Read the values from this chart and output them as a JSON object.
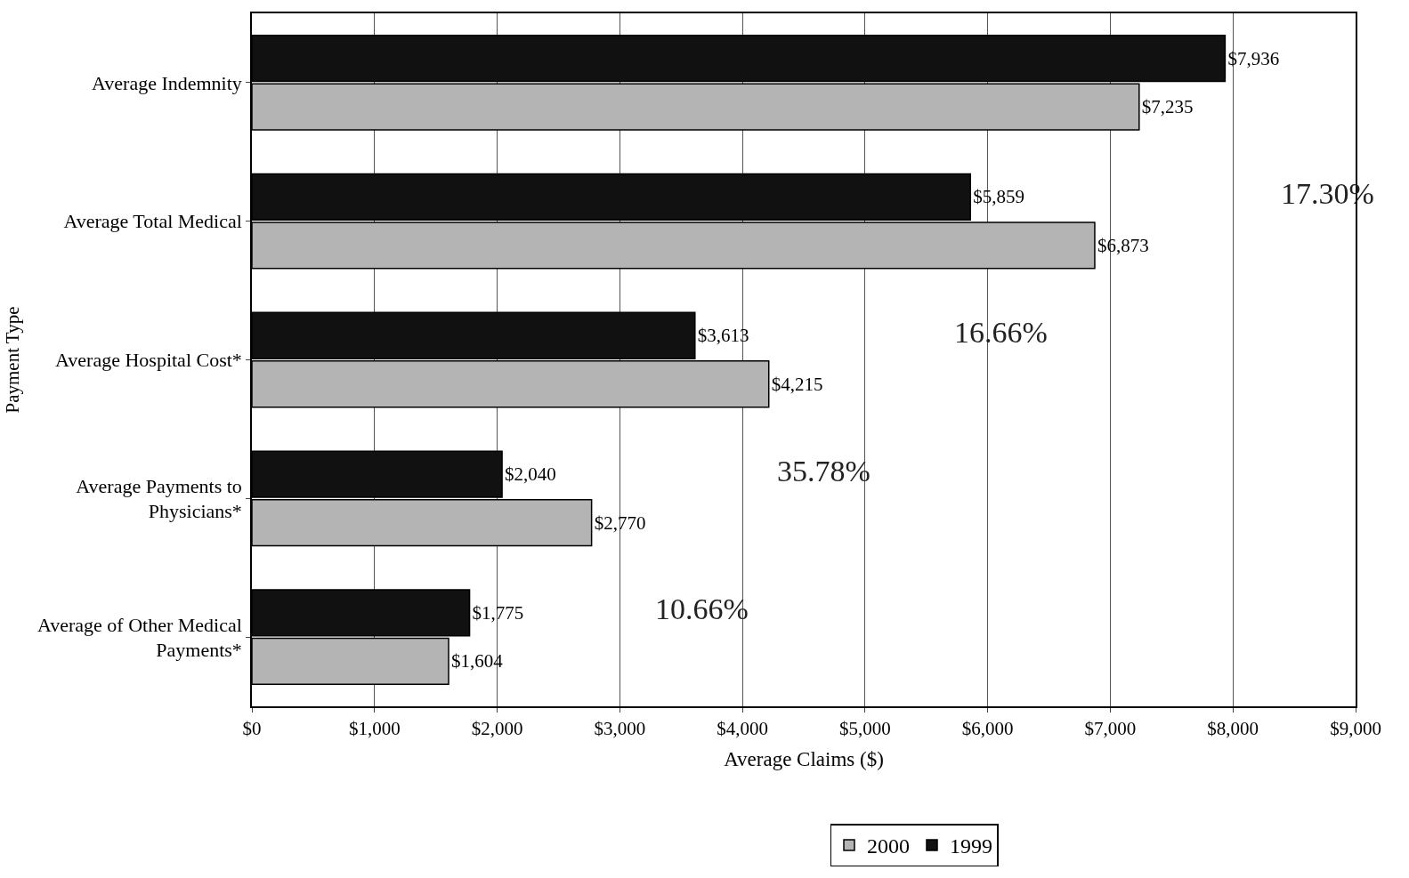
{
  "chart_data": {
    "type": "bar",
    "orientation": "horizontal",
    "xlabel": "Average Claims ($)",
    "ylabel": "Payment Type",
    "categories": [
      "Average Indemnity",
      "Average Total Medical",
      "Average Hospital Cost*",
      "Average Payments to Physicians*",
      "Average of Other Medical Payments*"
    ],
    "series": [
      {
        "name": "1999",
        "color": "#111111",
        "values": [
          7936,
          5859,
          3613,
          2040,
          1775
        ],
        "value_labels": [
          "$7,936",
          "$5,859",
          "$3,613",
          "$2,040",
          "$1,775"
        ]
      },
      {
        "name": "2000",
        "color": "#b4b4b4",
        "values": [
          7235,
          6873,
          4215,
          2770,
          1604
        ],
        "value_labels": [
          "$7,235",
          "$6,873",
          "$4,215",
          "$2,770",
          "$1,604"
        ]
      }
    ],
    "xlim": [
      0,
      9000
    ],
    "xticks": [
      {
        "value": 0,
        "label": "$0"
      },
      {
        "value": 1000,
        "label": "$1,000"
      },
      {
        "value": 2000,
        "label": "$2,000"
      },
      {
        "value": 3000,
        "label": "$3,000"
      },
      {
        "value": 4000,
        "label": "$4,000"
      },
      {
        "value": 5000,
        "label": "$5,000"
      },
      {
        "value": 6000,
        "label": "$6,000"
      },
      {
        "value": 7000,
        "label": "$7,000"
      },
      {
        "value": 8000,
        "label": "$8,000"
      },
      {
        "value": 9000,
        "label": "$9,000"
      }
    ],
    "grid": "x",
    "legend": "bottom",
    "annotations": [
      "17.30%",
      "16.66%",
      "35.78%",
      "10.66%"
    ]
  }
}
